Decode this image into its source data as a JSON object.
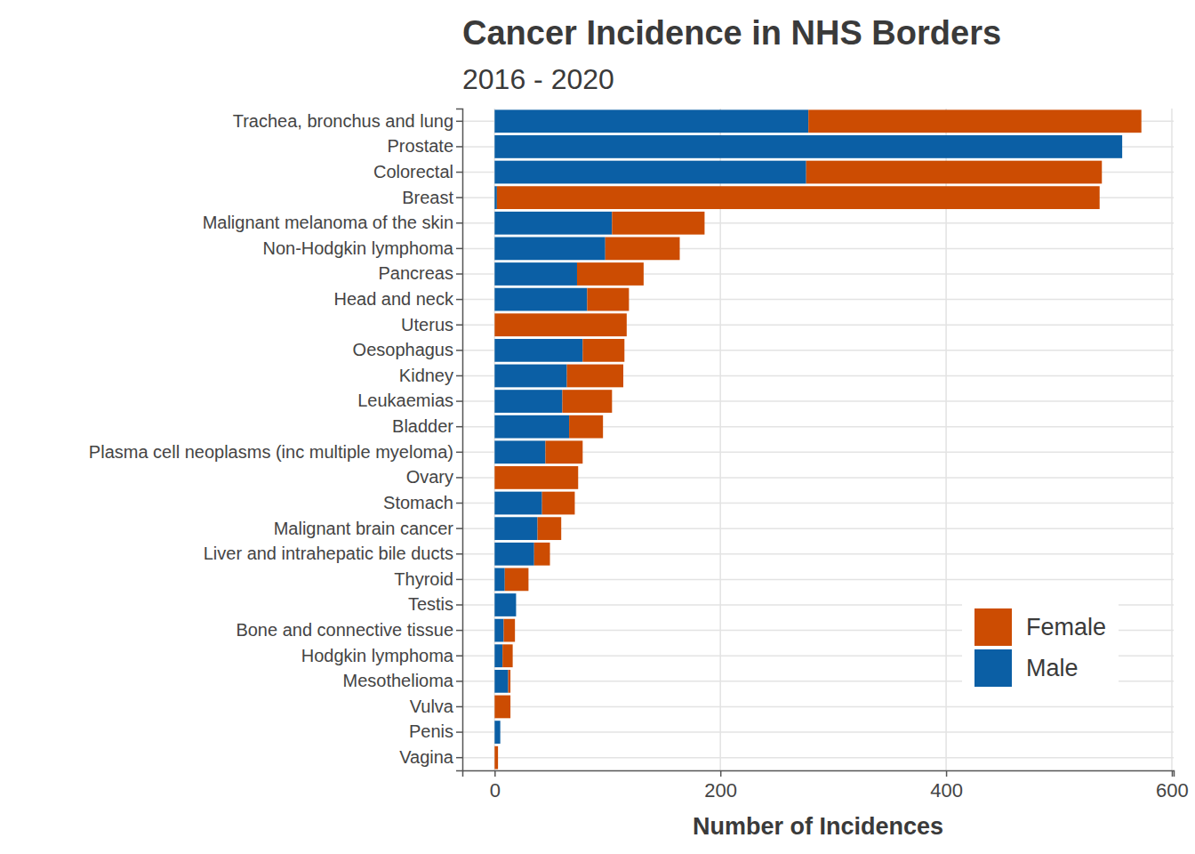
{
  "chart_data": {
    "type": "bar",
    "orientation": "horizontal",
    "stacked": true,
    "title": "Cancer Incidence in NHS Borders",
    "subtitle": "2016 - 2020",
    "x_label": "Number of Incidences",
    "categories": [
      "Trachea, bronchus and lung",
      "Prostate",
      "Colorectal",
      "Breast",
      "Malignant melanoma of the skin",
      "Non-Hodgkin lymphoma",
      "Pancreas",
      "Head and neck",
      "Uterus",
      "Oesophagus",
      "Kidney",
      "Leukaemias",
      "Bladder",
      "Plasma cell neoplasms (inc multiple myeloma)",
      "Ovary",
      "Stomach",
      "Malignant brain cancer",
      "Liver and intrahepatic bile ducts",
      "Thyroid",
      "Testis",
      "Bone and connective tissue",
      "Hodgkin lymphoma",
      "Mesothelioma",
      "Vulva",
      "Penis",
      "Vagina"
    ],
    "series": [
      {
        "name": "Male",
        "color": "#0B5FA5",
        "values": [
          278,
          556,
          276,
          2,
          104,
          98,
          73,
          82,
          0,
          78,
          64,
          60,
          66,
          45,
          0,
          42,
          38,
          35,
          9,
          19,
          8,
          7,
          12,
          0,
          5,
          0
        ]
      },
      {
        "name": "Female",
        "color": "#CC4C02",
        "values": [
          295,
          0,
          262,
          534,
          82,
          66,
          59,
          37,
          117,
          37,
          50,
          44,
          30,
          33,
          74,
          29,
          21,
          14,
          21,
          0,
          10,
          9,
          2,
          14,
          0,
          3
        ]
      }
    ],
    "xlim": [
      -28.6,
      601.6
    ],
    "xticks": [
      0,
      200,
      400,
      600
    ],
    "grid": true,
    "legend": "bottom-right"
  }
}
